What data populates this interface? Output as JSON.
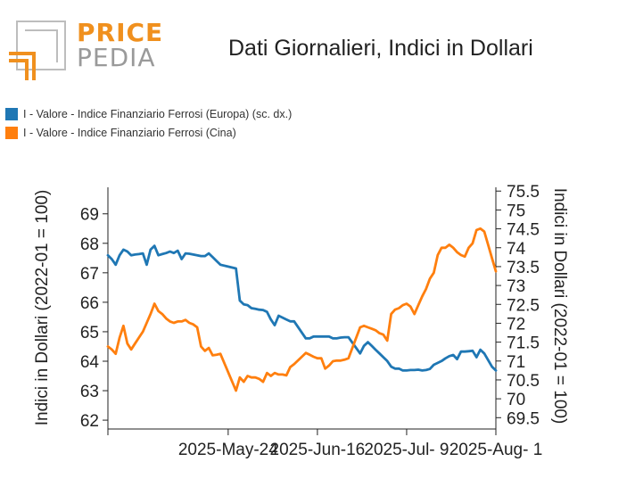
{
  "brand": {
    "top_text": "PRICE",
    "bottom_text": "PEDIA",
    "orange": "#f0901e",
    "gray": "#9a9a9a"
  },
  "title": "Dati Giornalieri, Indici in Dollari",
  "legend": [
    {
      "label": "I - Valore - Indice Finanziario Ferrosi (Europa) (sc. dx.)",
      "color": "#1f77b4"
    },
    {
      "label": "I - Valore - Indice Finanziario Ferrosi (Cina)",
      "color": "#ff7f0e"
    }
  ],
  "chart_data": {
    "type": "line",
    "title": "Dati Giornalieri, Indici in Dollari",
    "ylabel_left": "Indici in Dollari (2022-01 = 100)",
    "ylabel_right": "Indici in Dollari (2022-01 = 100)",
    "x_ticks": [
      {
        "index": 0,
        "label": ""
      },
      {
        "index": 31,
        "label": "2025-May-24"
      },
      {
        "index": 54,
        "label": "2025-Jun-16"
      },
      {
        "index": 77,
        "label": "2025-Jul- 9"
      },
      {
        "index": 100,
        "label": "2025-Aug- 1"
      }
    ],
    "y_left": {
      "ticks": [
        62,
        63,
        64,
        65,
        66,
        67,
        68,
        69
      ],
      "range": [
        61.7,
        69.9
      ]
    },
    "y_right": {
      "ticks": [
        69.5,
        70,
        70.5,
        71,
        71.5,
        72,
        72.5,
        73,
        73.5,
        74,
        74.5,
        75,
        75.5
      ],
      "range": [
        69.2,
        75.6
      ]
    },
    "series": [
      {
        "name": "I - Valore - Indice Finanziario Ferrosi (Europa) (sc. dx.)",
        "axis": "right",
        "color": "#1f77b4",
        "values": [
          73.8,
          73.7,
          73.55,
          73.8,
          73.95,
          73.9,
          73.8,
          73.82,
          73.83,
          73.85,
          73.55,
          73.95,
          74.05,
          73.8,
          73.83,
          73.86,
          73.9,
          73.86,
          73.92,
          73.7,
          73.85,
          73.84,
          73.82,
          73.8,
          73.78,
          73.78,
          73.85,
          73.75,
          73.65,
          73.55,
          73.45,
          72.6,
          72.5,
          72.48,
          72.4,
          72.38,
          72.36,
          72.35,
          72.3,
          72.1,
          71.95,
          72.2,
          72.15,
          72.1,
          72.05,
          72.05,
          71.6,
          71.6,
          71.65,
          71.65,
          71.65,
          71.65,
          71.65,
          71.6,
          71.6,
          71.62,
          71.63,
          71.63,
          71.2,
          71.4,
          71.5,
          71.4,
          71.3,
          71.2,
          71.1,
          71.0,
          70.85,
          70.8,
          70.8,
          70.75,
          70.75,
          70.76,
          70.76,
          70.77,
          70.75,
          70.76,
          70.79,
          70.9,
          70.95,
          71.0,
          71.07,
          71.13,
          71.16,
          71.05,
          71.25,
          71.25,
          71.26,
          71.27,
          71.1,
          71.3,
          71.2,
          70.85,
          70.75
        ],
        "x": [
          0,
          1,
          2,
          3,
          4,
          5,
          6,
          7,
          8,
          9,
          10,
          11,
          12,
          13,
          14,
          15,
          16,
          17,
          18,
          19,
          20,
          21,
          22,
          23,
          24,
          25,
          26,
          27,
          28,
          29,
          33,
          34,
          35,
          36,
          37,
          38,
          39,
          40,
          41,
          42,
          43,
          44,
          45,
          46,
          47,
          48,
          51,
          52,
          53,
          54,
          55,
          56,
          57,
          58,
          59,
          60,
          61,
          62,
          65,
          66,
          67,
          68,
          69,
          70,
          71,
          72,
          73,
          74,
          75,
          76,
          77,
          78,
          79,
          80,
          81,
          82,
          83,
          84,
          85,
          86,
          87,
          88,
          89,
          90,
          91,
          92,
          93,
          94,
          95,
          96,
          97,
          99,
          100
        ]
      },
      {
        "name": "I - Valore - Indice Finanziario Ferrosi (Cina)",
        "axis": "left",
        "color": "#ff7f0e",
        "x": [
          0,
          1,
          2,
          3,
          4,
          5,
          6,
          7,
          8,
          9,
          10,
          11,
          12,
          13,
          14,
          15,
          16,
          17,
          18,
          19,
          20,
          21,
          22,
          23,
          24,
          25,
          26,
          27,
          28,
          29,
          33,
          34,
          35,
          36,
          37,
          38,
          39,
          40,
          41,
          42,
          43,
          44,
          45,
          46,
          47,
          48,
          51,
          52,
          53,
          54,
          55,
          56,
          57,
          58,
          59,
          60,
          61,
          62,
          65,
          66,
          67,
          68,
          69,
          70,
          71,
          72,
          73,
          74,
          75,
          76,
          77,
          78,
          79,
          80,
          81,
          82,
          83,
          84,
          85,
          86,
          87,
          88,
          89,
          90,
          91,
          92,
          93,
          94,
          95,
          96,
          97,
          98,
          99,
          100
        ],
        "values": [
          64.5,
          64.4,
          64.25,
          64.8,
          65.2,
          64.6,
          64.4,
          64.6,
          64.8,
          65.0,
          65.3,
          65.6,
          65.95,
          65.7,
          65.6,
          65.45,
          65.35,
          65.3,
          65.35,
          65.35,
          65.4,
          65.3,
          65.25,
          65.15,
          64.5,
          64.35,
          64.45,
          64.2,
          64.22,
          64.25,
          63.0,
          63.45,
          63.3,
          63.5,
          63.45,
          63.45,
          63.4,
          63.3,
          63.6,
          63.5,
          63.6,
          63.55,
          63.55,
          63.52,
          63.8,
          63.9,
          64.28,
          64.22,
          64.15,
          64.1,
          64.1,
          63.75,
          63.85,
          64.0,
          64.02,
          64.02,
          64.05,
          64.1,
          65.15,
          65.2,
          65.15,
          65.1,
          65.05,
          64.95,
          64.9,
          64.7,
          65.6,
          65.75,
          65.8,
          65.9,
          65.95,
          65.85,
          65.6,
          65.9,
          66.2,
          66.45,
          66.8,
          67.0,
          67.6,
          67.85,
          67.85,
          67.95,
          67.85,
          67.7,
          67.6,
          67.55,
          67.85,
          68.0,
          68.45,
          68.5,
          68.4,
          67.95,
          67.5,
          67.05
        ]
      }
    ]
  }
}
